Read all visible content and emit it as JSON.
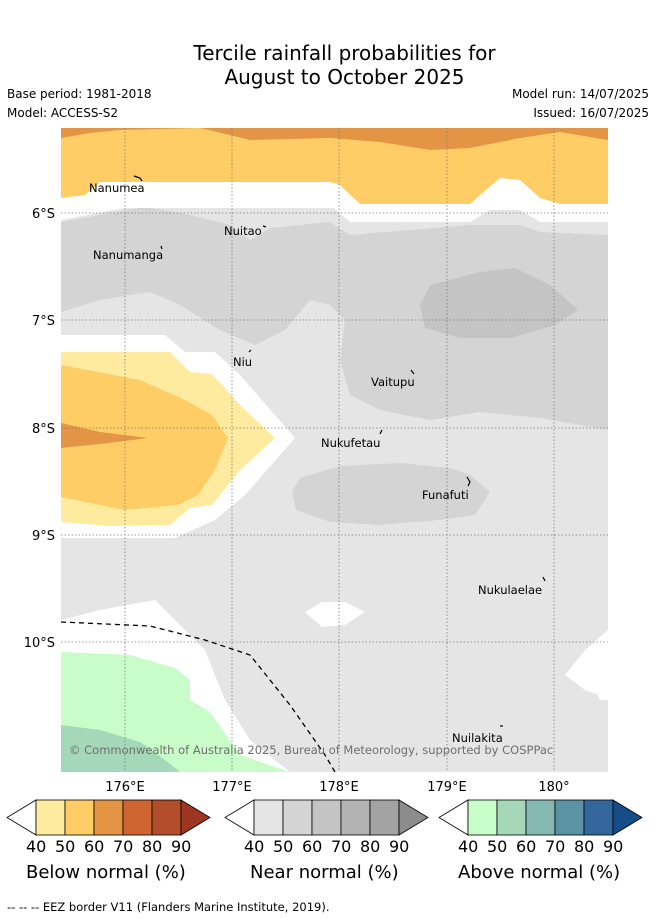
{
  "title": {
    "line1": "Tercile rainfall probabilities for",
    "line2": "August to October 2025"
  },
  "meta": {
    "base_period": "Base period: 1981-2018",
    "model": "Model: ACCESS-S2",
    "model_run": "Model run: 14/07/2025",
    "issued": "Issued: 16/07/2025"
  },
  "map": {
    "lat_labels": [
      "6°S",
      "7°S",
      "8°S",
      "9°S",
      "10°S"
    ],
    "lon_labels": [
      "176°E",
      "177°E",
      "178°E",
      "179°E",
      "180°"
    ],
    "islands": [
      {
        "name": "Nanumea"
      },
      {
        "name": "Nuitao"
      },
      {
        "name": "Nanumanga"
      },
      {
        "name": "Niu"
      },
      {
        "name": "Vaitupu"
      },
      {
        "name": "Nukufetau"
      },
      {
        "name": "Funafuti"
      },
      {
        "name": "Nukulaelae"
      },
      {
        "name": "Nuilakita"
      }
    ],
    "credit": "© Commonwealth of Australia 2025, Bureau of Meteorology, supported by COSPPac",
    "colors": {
      "near_normal": [
        "#e5e5e5",
        "#d4d4d4",
        "#c4c4c4",
        "#b3b3b3",
        "#a3a3a3",
        "#8c8c8c"
      ],
      "below_normal": [
        "#ffeba0",
        "#ffcd66",
        "#e39545",
        "#cf6531",
        "#b24e29",
        "#9e3520"
      ],
      "above_normal": [
        "#c8fcc8",
        "#a4d8b8",
        "#84b8b0",
        "#5b93a4",
        "#33679b",
        "#164d87"
      ]
    }
  },
  "colorbars": [
    {
      "id": "below",
      "title": "Below normal (%)",
      "ticks": [
        "40",
        "50",
        "60",
        "70",
        "80",
        "90"
      ]
    },
    {
      "id": "near",
      "title": "Near normal (%)",
      "ticks": [
        "40",
        "50",
        "60",
        "70",
        "80",
        "90"
      ]
    },
    {
      "id": "above",
      "title": "Above normal (%)",
      "ticks": [
        "40",
        "50",
        "60",
        "70",
        "80",
        "90"
      ]
    }
  ],
  "footer": "-- -- -- EEZ border V11 (Flanders Marine Institute, 2019)."
}
